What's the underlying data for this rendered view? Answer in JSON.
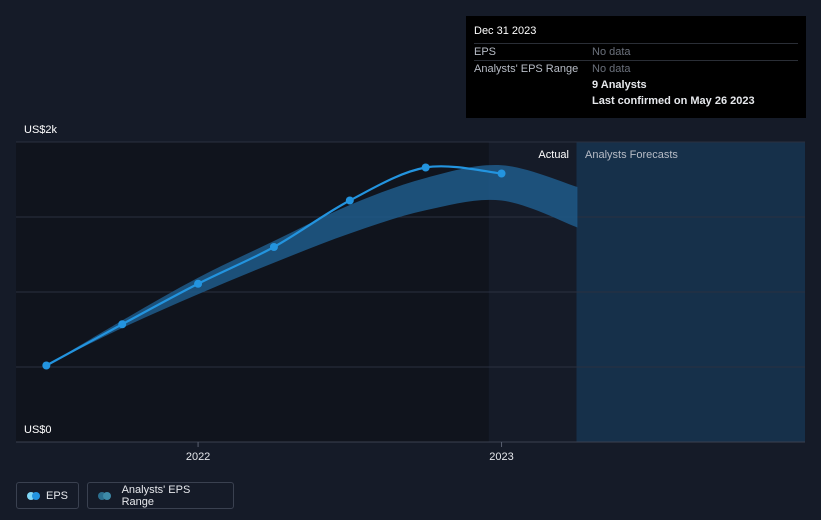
{
  "tooltip": {
    "date": "Dec 31 2023",
    "rows": [
      {
        "label": "EPS",
        "value": "No data"
      },
      {
        "label": "Analysts' EPS Range",
        "value": "No data"
      }
    ],
    "analysts": "9 Analysts",
    "confirmed": "Last confirmed on May 26 2023"
  },
  "colors": {
    "background": "#151b28",
    "eps_line": "#2394df",
    "range_band": "#1f5a8a",
    "forecast_region": "#16304a",
    "actual_region": "#10141d"
  },
  "regions": {
    "actual_label": "Actual",
    "forecast_label": "Analysts Forecasts",
    "actual_start": 2022.958,
    "forecast_start": 2023.247
  },
  "legend": {
    "eps": "EPS",
    "range": "Analysts' EPS Range"
  },
  "chart_data": {
    "type": "line",
    "title": "",
    "xlabel": "",
    "ylabel": "",
    "y_tick_labels": [
      "US$0",
      "US$2k"
    ],
    "x_tick_labels": [
      "2022",
      "2023"
    ],
    "x_ticks": [
      2022.0,
      2023.0
    ],
    "xlim": [
      2021.4,
      2024.0
    ],
    "ylim": [
      0,
      2000
    ],
    "grid": true,
    "series": [
      {
        "name": "EPS",
        "points": [
          [
            2021.5,
            510
          ],
          [
            2021.75,
            785
          ],
          [
            2022.0,
            1055
          ],
          [
            2022.25,
            1300
          ],
          [
            2022.5,
            1610
          ],
          [
            2022.75,
            1830
          ],
          [
            2023.0,
            1790
          ]
        ]
      },
      {
        "name": "Analysts' EPS Range",
        "high": [
          [
            2021.5,
            510
          ],
          [
            2021.75,
            810
          ],
          [
            2022.0,
            1095
          ],
          [
            2022.25,
            1340
          ],
          [
            2022.5,
            1580
          ],
          [
            2022.75,
            1760
          ],
          [
            2023.0,
            1845
          ],
          [
            2023.25,
            1700
          ]
        ],
        "low": [
          [
            2021.5,
            510
          ],
          [
            2021.75,
            760
          ],
          [
            2022.0,
            985
          ],
          [
            2022.25,
            1195
          ],
          [
            2022.5,
            1390
          ],
          [
            2022.75,
            1545
          ],
          [
            2023.0,
            1610
          ],
          [
            2023.25,
            1430
          ]
        ]
      }
    ]
  }
}
